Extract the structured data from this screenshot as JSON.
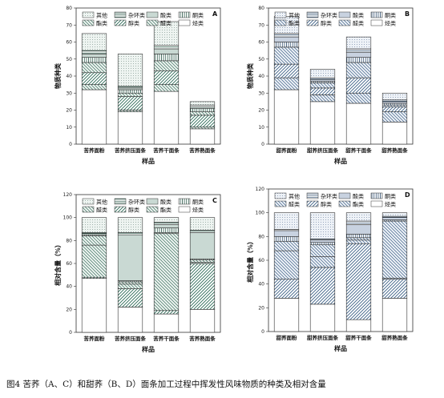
{
  "caption": "图4 苦荞（A、C）和甜荞（B、D）面条加工过程中挥发性风味物质的种类及相对含量",
  "chart_data": [
    {
      "type": "bar",
      "stacked": true,
      "panel_label": "A",
      "ylabel": "物质种类",
      "xlabel": "样品",
      "ylim": [
        0,
        80
      ],
      "yticks": [
        0,
        10,
        20,
        30,
        40,
        50,
        60,
        70,
        80
      ],
      "categories": [
        "苦荞面粉",
        "苦荞挤压面条",
        "苦荞干面条",
        "苦荞熟面条"
      ],
      "legend": [
        "其他",
        "杂环类",
        "酸类",
        "酮类",
        "酯类",
        "醇类",
        "醛类",
        "烃类"
      ],
      "series": [
        {
          "name": "烃类",
          "values": [
            32,
            19,
            31,
            9
          ]
        },
        {
          "name": "醛类",
          "values": [
            3,
            1,
            4,
            1
          ]
        },
        {
          "name": "醇类",
          "values": [
            7,
            8,
            8,
            7
          ]
        },
        {
          "name": "酯类",
          "values": [
            6,
            2,
            6,
            2
          ]
        },
        {
          "name": "酮类",
          "values": [
            3,
            2,
            4,
            2
          ]
        },
        {
          "name": "酸类",
          "values": [
            2,
            1,
            3,
            1
          ]
        },
        {
          "name": "杂环类",
          "values": [
            2,
            1,
            2,
            1
          ]
        },
        {
          "name": "其他",
          "values": [
            10,
            19,
            14,
            2
          ]
        }
      ]
    },
    {
      "type": "bar",
      "stacked": true,
      "panel_label": "B",
      "ylabel": "物质种类",
      "xlabel": "样品",
      "ylim": [
        0,
        80
      ],
      "yticks": [
        0,
        10,
        20,
        30,
        40,
        50,
        60,
        70,
        80
      ],
      "categories": [
        "甜荞面粉",
        "甜荞挤压面条",
        "甜荞干面条",
        "甜荞熟面条"
      ],
      "legend": [
        "其他",
        "杂环类",
        "酸类",
        "酮类",
        "酯类",
        "醇类",
        "醛类",
        "烃类"
      ],
      "series": [
        {
          "name": "烃类",
          "values": [
            32,
            25,
            24,
            13
          ]
        },
        {
          "name": "醛类",
          "values": [
            7,
            4,
            6,
            6
          ]
        },
        {
          "name": "醇类",
          "values": [
            8,
            4,
            9,
            3
          ]
        },
        {
          "name": "酯类",
          "values": [
            10,
            3,
            9,
            1
          ]
        },
        {
          "name": "酮类",
          "values": [
            3,
            1,
            3,
            1
          ]
        },
        {
          "name": "酸类",
          "values": [
            3,
            1,
            3,
            1
          ]
        },
        {
          "name": "杂环类",
          "values": [
            2,
            1,
            2,
            1
          ]
        },
        {
          "name": "其他",
          "values": [
            10,
            5,
            7,
            4
          ]
        }
      ]
    },
    {
      "type": "bar",
      "stacked": true,
      "panel_label": "C",
      "ylabel": "相对含量（%）",
      "xlabel": "样品",
      "ylim": [
        0,
        120
      ],
      "yticks": [
        0,
        20,
        40,
        60,
        80,
        100,
        120
      ],
      "categories": [
        "苦荞面粉",
        "苦荞挤压面条",
        "苦荞干面条",
        "苦荞熟面条"
      ],
      "legend": [
        "其他",
        "杂环类",
        "酸类",
        "酮类",
        "醛类",
        "醇类",
        "酯类",
        "烃类"
      ],
      "series": [
        {
          "name": "烃类",
          "values": [
            47,
            22,
            16,
            20
          ]
        },
        {
          "name": "醇类",
          "values": [
            1,
            16,
            3,
            40
          ]
        },
        {
          "name": "醛类",
          "values": [
            28,
            4,
            67,
            1
          ]
        },
        {
          "name": "酯类",
          "values": [
            8,
            2,
            1,
            2
          ]
        },
        {
          "name": "酮类",
          "values": [
            1,
            1,
            4,
            1
          ]
        },
        {
          "name": "酸类",
          "values": [
            1,
            40,
            3,
            23
          ]
        },
        {
          "name": "杂环类",
          "values": [
            1,
            2,
            2,
            2
          ]
        },
        {
          "name": "其他",
          "values": [
            13,
            13,
            4,
            11
          ]
        }
      ]
    },
    {
      "type": "bar",
      "stacked": true,
      "panel_label": "D",
      "ylabel": "相对含量（%）",
      "xlabel": "样品",
      "ylim": [
        0,
        120
      ],
      "yticks": [
        0,
        20,
        40,
        60,
        80,
        100,
        120
      ],
      "categories": [
        "甜荞面粉",
        "甜荞挤压面条",
        "甜荞干面条",
        "甜荞熟面条"
      ],
      "legend": [
        "其他",
        "杂环类",
        "酸类",
        "酮类",
        "醛类",
        "醇类",
        "酯类",
        "烃类"
      ],
      "series": [
        {
          "name": "烃类",
          "values": [
            28,
            23,
            10,
            28
          ]
        },
        {
          "name": "醇类",
          "values": [
            16,
            31,
            64,
            16
          ]
        },
        {
          "name": "醛类",
          "values": [
            24,
            9,
            3,
            1
          ]
        },
        {
          "name": "酯类",
          "values": [
            8,
            10,
            2,
            48
          ]
        },
        {
          "name": "酮类",
          "values": [
            4,
            2,
            3,
            1
          ]
        },
        {
          "name": "酸类",
          "values": [
            5,
            2,
            8,
            2
          ]
        },
        {
          "name": "杂环类",
          "values": [
            1,
            1,
            3,
            1
          ]
        },
        {
          "name": "其他",
          "values": [
            14,
            22,
            7,
            3
          ]
        }
      ]
    }
  ]
}
